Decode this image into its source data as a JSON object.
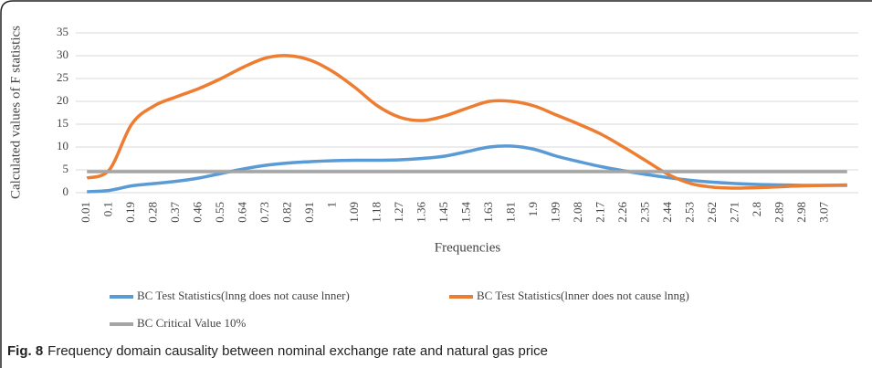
{
  "chart_data": {
    "type": "line",
    "ylabel": "Calculated values of F statistics",
    "xlabel": "Frequencies",
    "caption_label": "Fig. 8",
    "caption": "Frequency domain causality between nominal exchange rate and natural gas price",
    "categories": [
      "0.01",
      "0.1",
      "0.19",
      "0.28",
      "0.37",
      "0.46",
      "0.55",
      "0.64",
      "0.73",
      "0.82",
      "0.91",
      "1",
      "1.09",
      "1.18",
      "1.27",
      "1.36",
      "1.45",
      "1.54",
      "1.63",
      "1.81",
      "1.9",
      "1.99",
      "2.08",
      "2.17",
      "2.26",
      "2.35",
      "2.44",
      "2.53",
      "2.62",
      "2.71",
      "2.8",
      "2.89",
      "2.98",
      "3.07",
      null
    ],
    "series": [
      {
        "name": "BC Test Statistics(lnng does not cause lnner)",
        "color": "#5b9bd5",
        "values": [
          0.2,
          0.5,
          1.5,
          2,
          2.5,
          3.2,
          4.2,
          5.2,
          6,
          6.5,
          6.8,
          7,
          7.1,
          7.1,
          7.2,
          7.5,
          8,
          9,
          10,
          10.2,
          9.5,
          8,
          6.8,
          5.7,
          4.8,
          4,
          3.3,
          2.7,
          2.3,
          2,
          1.8,
          1.7,
          1.6,
          1.6,
          1.6
        ]
      },
      {
        "name": "BC Test Statistics(lnner does not cause lnng)",
        "color": "#ed7d31",
        "values": [
          3.2,
          5,
          15,
          19,
          21,
          22.8,
          25,
          27.5,
          29.5,
          30,
          29,
          26.5,
          23,
          19,
          16.5,
          15.8,
          16.8,
          18.5,
          20,
          20,
          19,
          17,
          15,
          12.8,
          10,
          7,
          4,
          2,
          1.2,
          1,
          1.1,
          1.3,
          1.5,
          1.6,
          1.7
        ]
      },
      {
        "name": "BC Critical Value 10%",
        "color": "#a5a5a5",
        "values": [
          4.6,
          4.6,
          4.6,
          4.6,
          4.6,
          4.6,
          4.6,
          4.6,
          4.6,
          4.6,
          4.6,
          4.6,
          4.6,
          4.6,
          4.6,
          4.6,
          4.6,
          4.6,
          4.6,
          4.6,
          4.6,
          4.6,
          4.6,
          4.6,
          4.6,
          4.6,
          4.6,
          4.6,
          4.6,
          4.6,
          4.6,
          4.6,
          4.6,
          4.6,
          4.6
        ]
      }
    ],
    "ylim": [
      0,
      35
    ],
    "yticks": [
      0,
      5,
      10,
      15,
      20,
      25,
      30,
      35
    ],
    "grid": true
  }
}
